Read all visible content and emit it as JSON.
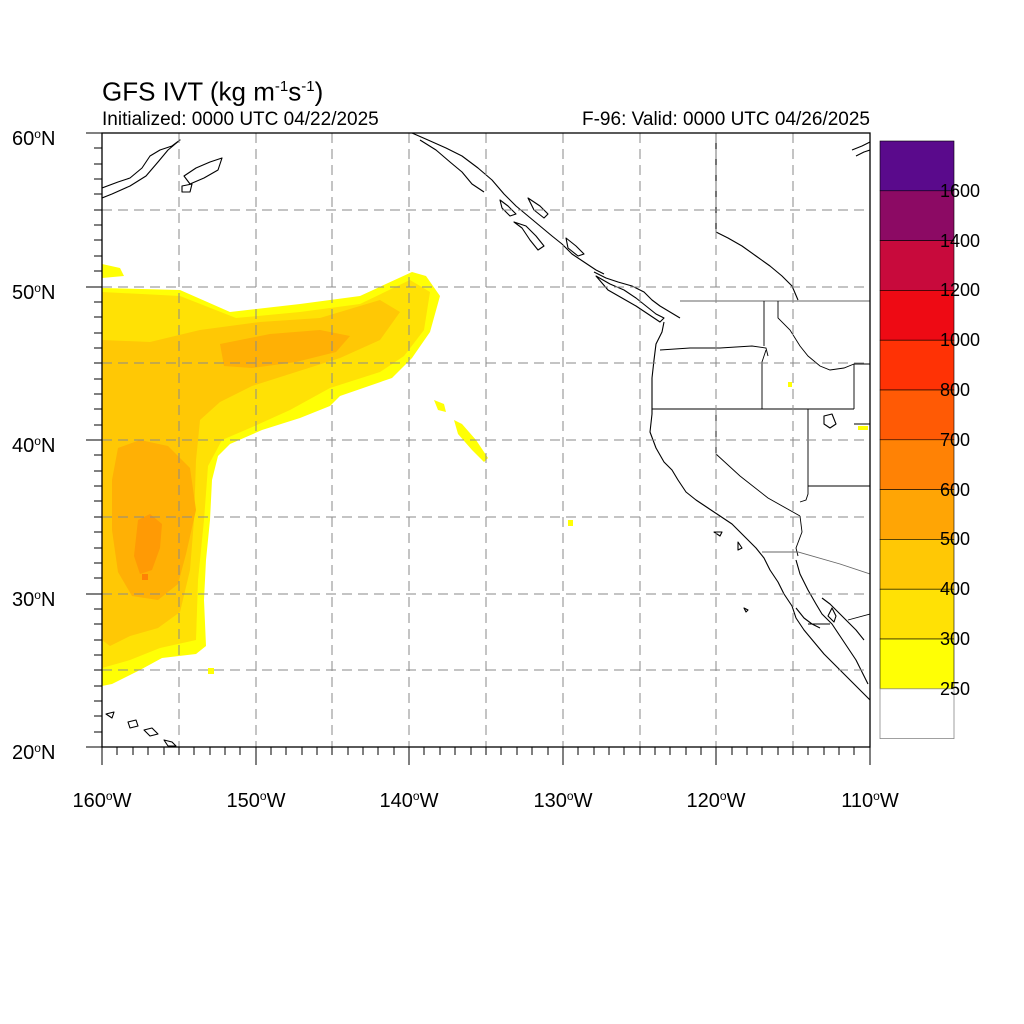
{
  "title": {
    "main": "GFS IVT (kg m",
    "exp1": "-1",
    "mid": "s",
    "exp2": "-1",
    "end": ")"
  },
  "initialized": "Initialized: 0000 UTC 04/22/2025",
  "valid": "F-96: Valid: 0000 UTC 04/26/2025",
  "map": {
    "lon_range": [
      -160,
      -110
    ],
    "lat_range": [
      20,
      60
    ],
    "gridlines": "dashed",
    "y_axis_labels": [
      {
        "lat": 60,
        "num": "60",
        "unit": "N"
      },
      {
        "lat": 50,
        "num": "50",
        "unit": "N"
      },
      {
        "lat": 40,
        "num": "40",
        "unit": "N"
      },
      {
        "lat": 30,
        "num": "30",
        "unit": "N"
      },
      {
        "lat": 20,
        "num": "20",
        "unit": "N"
      }
    ],
    "x_axis_labels": [
      {
        "lon": -160,
        "num": "160",
        "unit": "W"
      },
      {
        "lon": -150,
        "num": "150",
        "unit": "W"
      },
      {
        "lon": -140,
        "num": "140",
        "unit": "W"
      },
      {
        "lon": -130,
        "num": "130",
        "unit": "W"
      },
      {
        "lon": -120,
        "num": "120",
        "unit": "W"
      },
      {
        "lon": -110,
        "num": "110",
        "unit": "W"
      }
    ]
  },
  "colorbar": {
    "levels": [
      {
        "value": "1600",
        "color": "#5a0a8c"
      },
      {
        "value": "1400",
        "color": "#8c0a64"
      },
      {
        "value": "1200",
        "color": "#c80a3c"
      },
      {
        "value": "1000",
        "color": "#ee0a14"
      },
      {
        "value": "800",
        "color": "#ff3205"
      },
      {
        "value": "700",
        "color": "#ff5a05"
      },
      {
        "value": "600",
        "color": "#ff8205"
      },
      {
        "value": "500",
        "color": "#ffa505"
      },
      {
        "value": "400",
        "color": "#ffc805"
      },
      {
        "value": "300",
        "color": "#ffe105"
      },
      {
        "value": "250",
        "color": "#ffff05"
      }
    ],
    "below_color": "#ffffff"
  }
}
